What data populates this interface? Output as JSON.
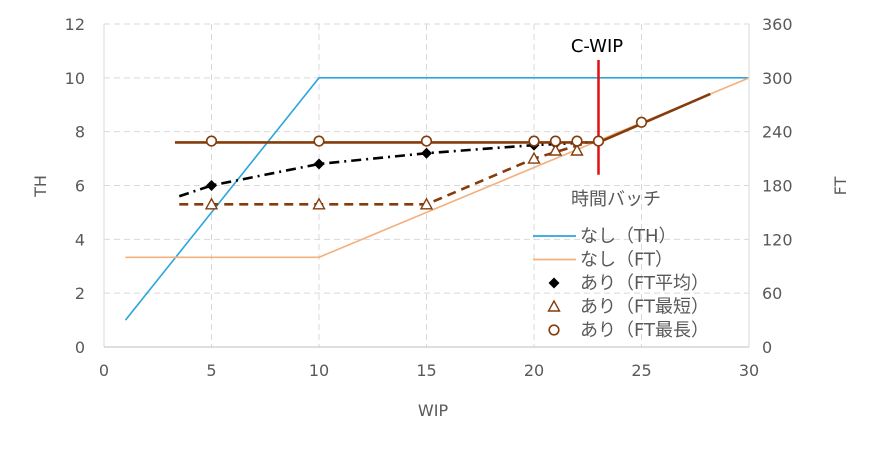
{
  "chart_data": {
    "type": "line",
    "xlabel": "WIP",
    "ylabel_left": "TH",
    "ylabel_right": "FT",
    "xlim": [
      0,
      30
    ],
    "ylim_left": [
      0,
      12
    ],
    "ylim_right": [
      0,
      360
    ],
    "x_ticks": [
      "0",
      "5",
      "10",
      "15",
      "20",
      "25",
      "30"
    ],
    "y_left_ticks": [
      "0",
      "2",
      "4",
      "6",
      "8",
      "10",
      "12"
    ],
    "y_right_ticks": [
      "0",
      "60",
      "120",
      "180",
      "240",
      "300",
      "360"
    ],
    "grid": true,
    "legend_position": "right",
    "legend_title": "時間バッチ",
    "legend": [
      "なし（TH）",
      "なし（FT）",
      "あり（FT平均）",
      "あり（FT最短）",
      "あり（FT最長）"
    ],
    "annotation": {
      "label": "C-WIP",
      "x": 23
    },
    "series": [
      {
        "name": "なし（TH）",
        "axis": "left",
        "kind": "line",
        "color": "#2CA6DC",
        "x": [
          1,
          10,
          30
        ],
        "y": [
          1,
          10,
          10
        ]
      },
      {
        "name": "なし（FT）",
        "axis": "right",
        "kind": "line",
        "color": "#F2B07F",
        "x": [
          1,
          10,
          30
        ],
        "y": [
          100,
          100,
          300
        ]
      },
      {
        "name": "あり（FT平均）",
        "axis": "left",
        "kind": "marker",
        "marker": "diamond",
        "color": "#000000",
        "x": [
          5,
          10,
          15,
          20,
          21,
          22
        ],
        "y": [
          6.0,
          6.8,
          7.2,
          7.5,
          7.55,
          7.6
        ]
      },
      {
        "name": "あり（FT最短）",
        "axis": "left",
        "kind": "marker",
        "marker": "triangle",
        "color": "#843C0C",
        "x": [
          5,
          10,
          15,
          20,
          21,
          22
        ],
        "y": [
          5.3,
          5.3,
          5.3,
          7.0,
          7.3,
          7.3
        ]
      },
      {
        "name": "あり（FT最長）",
        "axis": "left",
        "kind": "marker",
        "marker": "circle",
        "color": "#843C0C",
        "x": [
          5,
          10,
          15,
          20,
          21,
          22,
          23,
          25
        ],
        "y": [
          7.65,
          7.65,
          7.65,
          7.65,
          7.65,
          7.65,
          7.65,
          8.35
        ]
      }
    ],
    "trendlines": [
      {
        "style": "dashdot",
        "color": "#000000",
        "axis": "left",
        "x": [
          3.5,
          5,
          10,
          15,
          20,
          22.5
        ],
        "y": [
          5.6,
          6.0,
          6.8,
          7.2,
          7.5,
          7.6
        ]
      },
      {
        "style": "dash",
        "color": "#843C0C",
        "axis": "left",
        "x": [
          3.5,
          15,
          20,
          22.5
        ],
        "y": [
          5.3,
          5.3,
          7.0,
          7.6
        ]
      },
      {
        "style": "solid",
        "color": "#843C0C",
        "axis": "left",
        "x": [
          3.3,
          23,
          28.2
        ],
        "y": [
          7.6,
          7.6,
          9.4
        ]
      }
    ],
    "colors": {
      "cwip_line": "#E01010",
      "grid": "#D9D9D9"
    }
  }
}
